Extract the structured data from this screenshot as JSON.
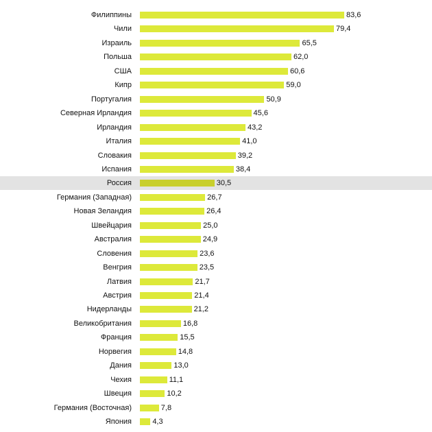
{
  "chart_data": {
    "type": "bar",
    "orientation": "horizontal",
    "title": "",
    "xlabel": "",
    "ylabel": "",
    "xlim": [
      0,
      83.6
    ],
    "grid": false,
    "highlight": "Россия",
    "bar_color": "#dde93a",
    "highlight_bar_color": "#c8cf2d",
    "highlight_row_color": "#e3e3e3",
    "categories": [
      "Филиппины",
      "Чили",
      "Израиль",
      "Польша",
      "США",
      "Кипр",
      "Португалия",
      "Северная Ирландия",
      "Ирландия",
      "Италия",
      "Словакия",
      "Испания",
      "Россия",
      "Германия (Западная)",
      "Новая Зеландия",
      "Швейцария",
      "Австралия",
      "Словения",
      "Венгрия",
      "Латвия",
      "Австрия",
      "Нидерланды",
      "Великобритания",
      "Франция",
      "Норвегия",
      "Дания",
      "Чехия",
      "Швеция",
      "Германия (Восточная)",
      "Япония"
    ],
    "values": [
      83.6,
      79.4,
      65.5,
      62.0,
      60.6,
      59.0,
      50.9,
      45.6,
      43.2,
      41.0,
      39.2,
      38.4,
      30.5,
      26.7,
      26.4,
      25.0,
      24.9,
      23.6,
      23.5,
      21.7,
      21.4,
      21.2,
      16.8,
      15.5,
      14.8,
      13.0,
      11.1,
      10.2,
      7.8,
      4.3
    ],
    "value_labels": [
      "83,6",
      "79,4",
      "65,5",
      "62,0",
      "60,6",
      "59,0",
      "50,9",
      "45,6",
      "43,2",
      "41,0",
      "39,2",
      "38,4",
      "30,5",
      "26,7",
      "26,4",
      "25,0",
      "24,9",
      "23,6",
      "23,5",
      "21,7",
      "21,4",
      "21,2",
      "16,8",
      "15,5",
      "14,8",
      "13,0",
      "11,1",
      "10,2",
      "7,8",
      "4,3"
    ]
  }
}
